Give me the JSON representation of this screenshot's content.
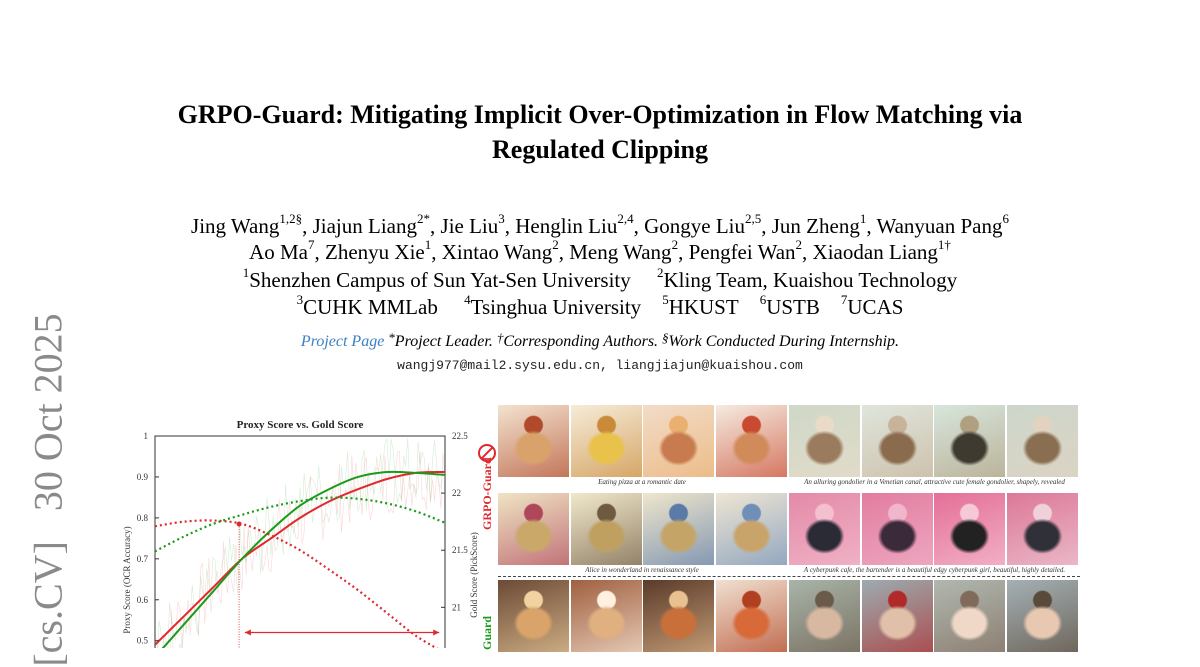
{
  "paper": {
    "title_line1": "GRPO-Guard: Mitigating Implicit Over-Optimization in Flow Matching via",
    "title_line2": "Regulated Clipping",
    "authors_line1": [
      {
        "name": "Jing Wang",
        "sup": "1,2§"
      },
      {
        "name": ", Jiajun Liang",
        "sup": "2*"
      },
      {
        "name": ", Jie Liu",
        "sup": "3"
      },
      {
        "name": ", Henglin Liu",
        "sup": "2,4"
      },
      {
        "name": ", Gongye Liu",
        "sup": "2,5"
      },
      {
        "name": ", Jun Zheng",
        "sup": "1"
      },
      {
        "name": ", Wanyuan Pang",
        "sup": "6"
      }
    ],
    "authors_line2": [
      {
        "name": "Ao Ma",
        "sup": "7"
      },
      {
        "name": ", Zhenyu Xie",
        "sup": "1"
      },
      {
        "name": ", Xintao Wang",
        "sup": "2"
      },
      {
        "name": ", Meng Wang",
        "sup": "2"
      },
      {
        "name": ", Pengfei Wan",
        "sup": "2"
      },
      {
        "name": ", Xiaodan Liang",
        "sup": "1†"
      }
    ],
    "affiliations_line1": [
      {
        "sup": "1",
        "name": "Shenzhen Campus of Sun Yat-Sen University"
      },
      {
        "sup": "2",
        "name": "Kling Team, Kuaishou Technology"
      }
    ],
    "affiliations_line2": [
      {
        "sup": "3",
        "name": "CUHK MMLab "
      },
      {
        "sup": "4",
        "name": "Tsinghua University"
      },
      {
        "sup": "5",
        "name": "HKUST"
      },
      {
        "sup": "6",
        "name": "USTB"
      },
      {
        "sup": "7",
        "name": "UCAS"
      }
    ],
    "project_link": "Project Page",
    "notes": [
      {
        "sup": "*",
        "text": "Project Leader. "
      },
      {
        "sup": "†",
        "text": "Corresponding Authors. "
      },
      {
        "sup": "§",
        "text": "Work Conducted During Internship."
      }
    ],
    "emails": "wangj977@mail2.sysu.edu.cn, liangjiajun@kuaishou.com",
    "arxiv_stamp": "[cs.CV]   30 Oct 2025"
  },
  "figure": {
    "side_label_top": "GRPO-Guard",
    "side_label_bottom": "Guard",
    "captions": [
      "Eating pizza at a romantic date",
      "An alluring gondolier in a Venetian canal, attractive cute female gondolier, shapely, revealed",
      "Alice in wonderland in renaissance style",
      "A cyberpunk cafe, the bartender is a beautiful edgy cyberpunk girl, beautiful, highly detailed."
    ],
    "colors": {
      "red": "#e0282e",
      "green": "#1a9a1a"
    }
  },
  "chart_data": {
    "type": "line",
    "title": "Proxy Score vs. Gold Score",
    "ylabel": "Proxy Score (OCR Accuracy)",
    "y2label": "Gold Score (PickScore)",
    "ylim": [
      0.47,
      1.0
    ],
    "y2lim": [
      20.6,
      22.5
    ],
    "yticks": [
      "1",
      "0.9",
      "0.8",
      "0.7",
      "0.6",
      "0.5"
    ],
    "y2ticks": [
      "22.5",
      "22",
      "21.5",
      "21"
    ],
    "grid": false,
    "x": [
      0,
      1,
      2,
      3,
      4,
      5,
      6,
      7,
      8,
      9,
      10
    ],
    "series": [
      {
        "axis": "left",
        "style": "solid",
        "color": "#e0282e",
        "values": [
          0.49,
          0.56,
          0.63,
          0.7,
          0.75,
          0.8,
          0.84,
          0.87,
          0.895,
          0.91,
          0.912
        ]
      },
      {
        "axis": "left",
        "style": "solid",
        "color": "#1a9a1a",
        "values": [
          0.46,
          0.54,
          0.62,
          0.7,
          0.77,
          0.83,
          0.87,
          0.9,
          0.912,
          0.91,
          0.905
        ]
      },
      {
        "axis": "right",
        "style": "dotted",
        "color": "#e0282e",
        "values": [
          21.71,
          21.75,
          21.76,
          21.73,
          21.63,
          21.5,
          21.33,
          21.15,
          20.95,
          20.75,
          20.6
        ]
      },
      {
        "axis": "right",
        "style": "dotted",
        "color": "#1a9a1a",
        "values": [
          21.49,
          21.62,
          21.73,
          21.81,
          21.88,
          21.93,
          21.96,
          21.95,
          21.91,
          21.84,
          21.74
        ]
      }
    ],
    "annotations": {
      "marker_x": 2.9,
      "marker_y": 0.785,
      "arrow_x": [
        3.1,
        9.8
      ],
      "arrow_y": 0.49
    }
  }
}
